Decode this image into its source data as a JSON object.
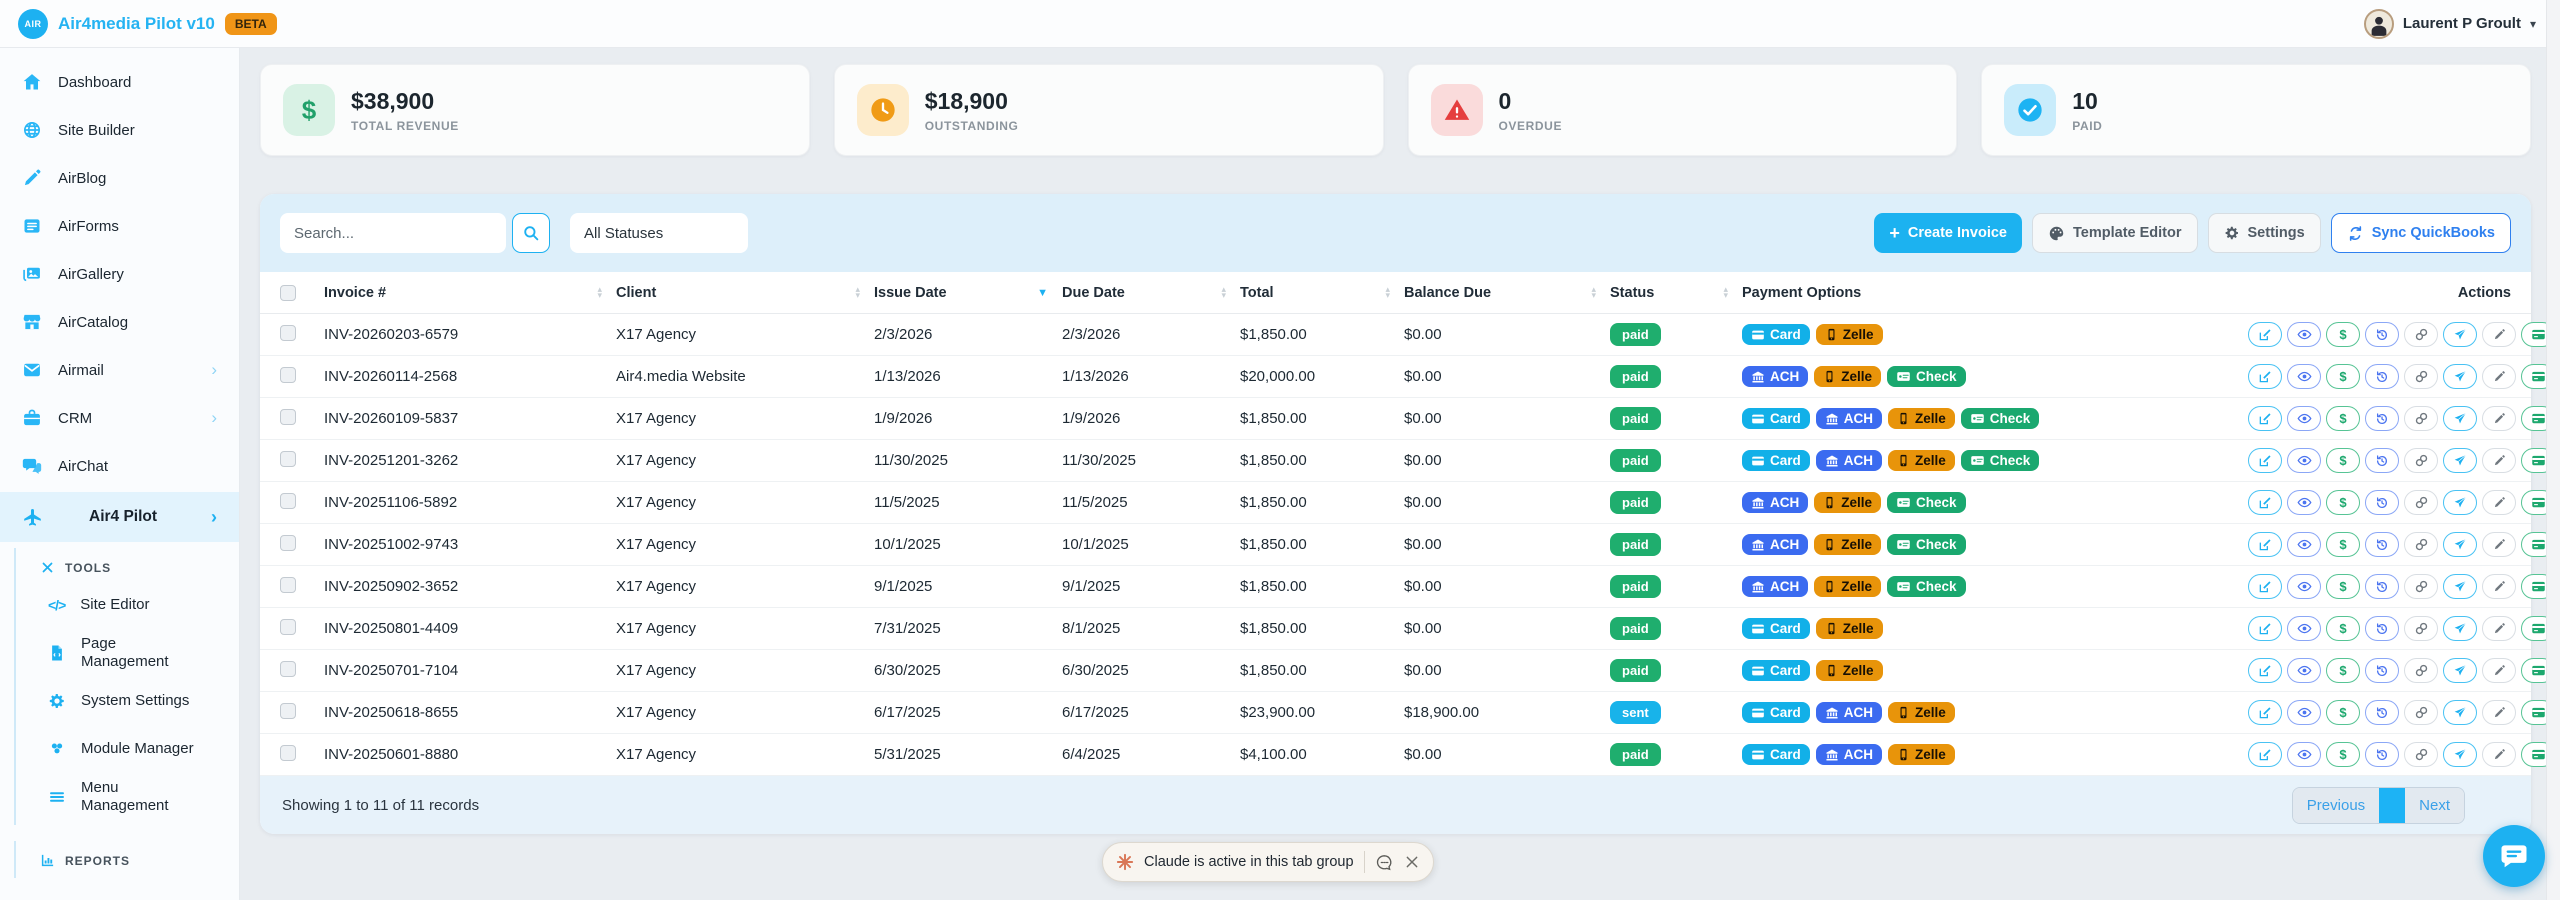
{
  "header": {
    "logo_text": "AIR",
    "app_title": "Air4media Pilot v10",
    "beta_badge": "BETA",
    "user_name": "Laurent P Groult"
  },
  "sidebar": {
    "items": [
      {
        "label": "Dashboard"
      },
      {
        "label": "Site Builder"
      },
      {
        "label": "AirBlog"
      },
      {
        "label": "AirForms"
      },
      {
        "label": "AirGallery"
      },
      {
        "label": "AirCatalog"
      },
      {
        "label": "Airmail",
        "chevron": "›"
      },
      {
        "label": "CRM",
        "chevron": "›"
      },
      {
        "label": "AirChat"
      }
    ],
    "active_item": {
      "label": "Air4 Pilot",
      "chevron": "›"
    },
    "tools_section": {
      "label": "TOOLS",
      "items": [
        {
          "label": "Site Editor"
        },
        {
          "label": "Page Management"
        },
        {
          "label": "System Settings"
        },
        {
          "label": "Module Manager"
        },
        {
          "label": "Menu Management"
        }
      ]
    },
    "reports_section": {
      "label": "REPORTS"
    }
  },
  "stats": [
    {
      "value": "$38,900",
      "label": "TOTAL REVENUE"
    },
    {
      "value": "$18,900",
      "label": "OUTSTANDING"
    },
    {
      "value": "0",
      "label": "OVERDUE"
    },
    {
      "value": "10",
      "label": "PAID"
    }
  ],
  "toolbar": {
    "search_placeholder": "Search...",
    "status_filter": "All Statuses",
    "create_label": "Create Invoice",
    "template_label": "Template Editor",
    "settings_label": "Settings",
    "sync_label": "Sync QuickBooks"
  },
  "table": {
    "columns": [
      {
        "label": "Invoice #",
        "sort": "both"
      },
      {
        "label": "Client",
        "sort": "both"
      },
      {
        "label": "Issue Date",
        "sort": "desc"
      },
      {
        "label": "Due Date",
        "sort": "both"
      },
      {
        "label": "Total",
        "sort": "both"
      },
      {
        "label": "Balance Due",
        "sort": "both"
      },
      {
        "label": "Status",
        "sort": "both"
      },
      {
        "label": "Payment Options",
        "sort": "none"
      },
      {
        "label": "Actions",
        "sort": "none"
      }
    ],
    "rows": [
      {
        "invoice": "INV-20260203-6579",
        "client": "X17 Agency",
        "issue_date": "2/3/2026",
        "due_date": "2/3/2026",
        "total": "$1,850.00",
        "balance": "$0.00",
        "status": "paid",
        "payments": [
          "Card",
          "Zelle"
        ]
      },
      {
        "invoice": "INV-20260114-2568",
        "client": "Air4.media Website",
        "issue_date": "1/13/2026",
        "due_date": "1/13/2026",
        "total": "$20,000.00",
        "balance": "$0.00",
        "status": "paid",
        "payments": [
          "ACH",
          "Zelle",
          "Check"
        ]
      },
      {
        "invoice": "INV-20260109-5837",
        "client": "X17 Agency",
        "issue_date": "1/9/2026",
        "due_date": "1/9/2026",
        "total": "$1,850.00",
        "balance": "$0.00",
        "status": "paid",
        "payments": [
          "Card",
          "ACH",
          "Zelle",
          "Check"
        ]
      },
      {
        "invoice": "INV-20251201-3262",
        "client": "X17 Agency",
        "issue_date": "11/30/2025",
        "due_date": "11/30/2025",
        "total": "$1,850.00",
        "balance": "$0.00",
        "status": "paid",
        "payments": [
          "Card",
          "ACH",
          "Zelle",
          "Check"
        ]
      },
      {
        "invoice": "INV-20251106-5892",
        "client": "X17 Agency",
        "issue_date": "11/5/2025",
        "due_date": "11/5/2025",
        "total": "$1,850.00",
        "balance": "$0.00",
        "status": "paid",
        "payments": [
          "ACH",
          "Zelle",
          "Check"
        ]
      },
      {
        "invoice": "INV-20251002-9743",
        "client": "X17 Agency",
        "issue_date": "10/1/2025",
        "due_date": "10/1/2025",
        "total": "$1,850.00",
        "balance": "$0.00",
        "status": "paid",
        "payments": [
          "ACH",
          "Zelle",
          "Check"
        ]
      },
      {
        "invoice": "INV-20250902-3652",
        "client": "X17 Agency",
        "issue_date": "9/1/2025",
        "due_date": "9/1/2025",
        "total": "$1,850.00",
        "balance": "$0.00",
        "status": "paid",
        "payments": [
          "ACH",
          "Zelle",
          "Check"
        ]
      },
      {
        "invoice": "INV-20250801-4409",
        "client": "X17 Agency",
        "issue_date": "7/31/2025",
        "due_date": "8/1/2025",
        "total": "$1,850.00",
        "balance": "$0.00",
        "status": "paid",
        "payments": [
          "Card",
          "Zelle"
        ]
      },
      {
        "invoice": "INV-20250701-7104",
        "client": "X17 Agency",
        "issue_date": "6/30/2025",
        "due_date": "6/30/2025",
        "total": "$1,850.00",
        "balance": "$0.00",
        "status": "paid",
        "payments": [
          "Card",
          "Zelle"
        ]
      },
      {
        "invoice": "INV-20250618-8655",
        "client": "X17 Agency",
        "issue_date": "6/17/2025",
        "due_date": "6/17/2025",
        "total": "$23,900.00",
        "balance": "$18,900.00",
        "status": "sent",
        "payments": [
          "Card",
          "ACH",
          "Zelle"
        ]
      },
      {
        "invoice": "INV-20250601-8880",
        "client": "X17 Agency",
        "issue_date": "5/31/2025",
        "due_date": "6/4/2025",
        "total": "$4,100.00",
        "balance": "$0.00",
        "status": "paid",
        "payments": [
          "Card",
          "ACH",
          "Zelle"
        ]
      }
    ],
    "row_actions": [
      {
        "name": "edit",
        "style": "cyan"
      },
      {
        "name": "view",
        "style": "blue"
      },
      {
        "name": "payment",
        "style": "green"
      },
      {
        "name": "history",
        "style": "blue"
      },
      {
        "name": "link",
        "style": "gray"
      },
      {
        "name": "send",
        "style": "cyan"
      },
      {
        "name": "sign",
        "style": "gray"
      },
      {
        "name": "charge",
        "style": "green"
      }
    ]
  },
  "footer": {
    "showing_text": "Showing 1 to 11 of 11 records",
    "previous_label": "Previous",
    "next_label": "Next"
  },
  "notification": {
    "text": "Claude is active in this tab group"
  },
  "colors": {
    "primary": "#1db1f1",
    "status": {
      "paid": "#1fae6e",
      "sent": "#18b3ea"
    },
    "payment": {
      "card": {
        "bg": "#12b0e8",
        "fg": "#ffffff"
      },
      "ach": {
        "bg": "#3b6bf0",
        "fg": "#ffffff"
      },
      "zelle": {
        "bg": "#e8940a",
        "fg": "#181004"
      },
      "check": {
        "bg": "#1aa86f",
        "fg": "#ffffff"
      }
    }
  }
}
